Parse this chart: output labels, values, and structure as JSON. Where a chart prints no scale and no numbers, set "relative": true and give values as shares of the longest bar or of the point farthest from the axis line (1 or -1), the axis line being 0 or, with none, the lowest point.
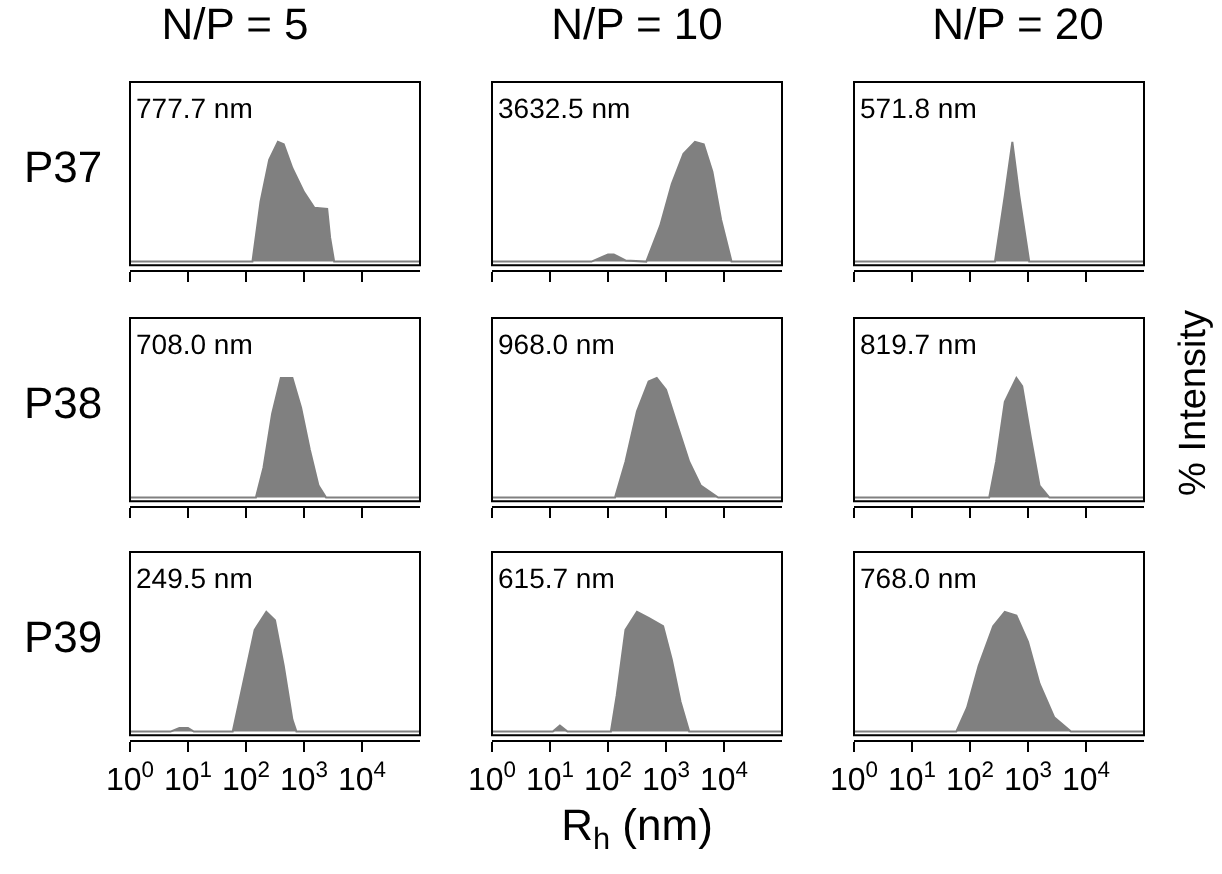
{
  "chart_data": [
    {
      "type": "area",
      "title": "N/P = 5",
      "ylabel": "P37",
      "annotations": [
        "777.7 nm"
      ],
      "relative": true,
      "tick_labels": false,
      "xlim": [
        1,
        100000
      ],
      "xticks": [
        {
          "value": 1,
          "label": null
        },
        {
          "value": 10,
          "label": null
        },
        {
          "value": 100,
          "label": null
        },
        {
          "value": 1000,
          "label": null
        },
        {
          "value": 10000,
          "label": null
        }
      ],
      "log": "x",
      "grid": false,
      "series": [
        {
          "color": "#808080",
          "x": [
            1,
            129,
            178,
            251,
            355,
            447,
            631,
            1000,
            1510,
            2510,
            2820,
            3310,
            100000
          ],
          "values": [
            0,
            0,
            0.5,
            0.85,
            1,
            0.98,
            0.78,
            0.58,
            0.45,
            0.44,
            0.2,
            0,
            0
          ]
        }
      ]
    },
    {
      "type": "area",
      "title": "N/P = 10",
      "annotations": [
        "3632.5 nm"
      ],
      "relative": true,
      "tick_labels": false,
      "xlim": [
        1,
        100000
      ],
      "xticks": [
        {
          "value": 1,
          "label": null
        },
        {
          "value": 10,
          "label": null
        },
        {
          "value": 100,
          "label": null
        },
        {
          "value": 1000,
          "label": null
        },
        {
          "value": 10000,
          "label": null
        }
      ],
      "log": "x",
      "grid": false,
      "series": [
        {
          "color": "#808080",
          "x": [
            1,
            52,
            100,
            126,
            200,
            457,
            794,
            1260,
            2000,
            3160,
            4470,
            6310,
            8910,
            13500,
            100000
          ],
          "values": [
            0,
            0,
            0.06,
            0.06,
            0.01,
            0,
            0.3,
            0.65,
            0.9,
            1,
            0.98,
            0.75,
            0.35,
            0,
            0
          ]
        }
      ]
    },
    {
      "type": "area",
      "title": "N/P = 20",
      "annotations": [
        "571.8 nm"
      ],
      "relative": true,
      "tick_labels": false,
      "xlim": [
        1,
        100000
      ],
      "xticks": [
        {
          "value": 1,
          "label": null
        },
        {
          "value": 10,
          "label": null
        },
        {
          "value": 100,
          "label": null
        },
        {
          "value": 1000,
          "label": null
        },
        {
          "value": 10000,
          "label": null
        }
      ],
      "log": "x",
      "grid": false,
      "series": [
        {
          "color": "#808080",
          "x": [
            1,
            269,
            398,
            537,
            708,
            1050,
            100000
          ],
          "values": [
            0,
            0,
            0.55,
            1,
            0.55,
            0,
            0
          ]
        }
      ]
    },
    {
      "type": "area",
      "ylabel": "P38",
      "annotations": [
        "708.0 nm"
      ],
      "relative": true,
      "tick_labels": false,
      "xlim": [
        1,
        100000
      ],
      "xticks": [
        {
          "value": 1,
          "label": null
        },
        {
          "value": 10,
          "label": null
        },
        {
          "value": 100,
          "label": null
        },
        {
          "value": 1000,
          "label": null
        },
        {
          "value": 10000,
          "label": null
        }
      ],
      "log": "x",
      "grid": false,
      "series": [
        {
          "color": "#808080",
          "x": [
            1,
            148,
            200,
            282,
            398,
            631,
            891,
            1260,
            1780,
            2400,
            100000
          ],
          "values": [
            0,
            0,
            0.25,
            0.7,
            1,
            1,
            0.75,
            0.4,
            0.1,
            0,
            0
          ]
        }
      ]
    },
    {
      "type": "area",
      "annotations": [
        "968.0 nm"
      ],
      "relative": true,
      "tick_labels": false,
      "xlim": [
        1,
        100000
      ],
      "xticks": [
        {
          "value": 1,
          "label": null
        },
        {
          "value": 10,
          "label": null
        },
        {
          "value": 100,
          "label": null
        },
        {
          "value": 1000,
          "label": null
        },
        {
          "value": 10000,
          "label": null
        }
      ],
      "log": "x",
      "grid": false,
      "series": [
        {
          "color": "#808080",
          "x": [
            1,
            132,
            200,
            316,
            501,
            692,
            1000,
            1580,
            2510,
            3980,
            7940,
            100000
          ],
          "values": [
            0,
            0,
            0.3,
            0.72,
            0.97,
            1,
            0.9,
            0.6,
            0.3,
            0.1,
            0,
            0
          ]
        }
      ]
    },
    {
      "type": "area",
      "y2label": "% Intensity",
      "annotations": [
        "819.7 nm"
      ],
      "relative": true,
      "tick_labels": false,
      "xlim": [
        1,
        100000
      ],
      "xticks": [
        {
          "value": 1,
          "label": null
        },
        {
          "value": 10,
          "label": null
        },
        {
          "value": 100,
          "label": null
        },
        {
          "value": 1000,
          "label": null
        },
        {
          "value": 10000,
          "label": null
        }
      ],
      "log": "x",
      "grid": false,
      "series": [
        {
          "color": "#808080",
          "x": [
            1,
            214,
            282,
            398,
            631,
            794,
            1120,
            1580,
            2340,
            100000
          ],
          "values": [
            0,
            0,
            0.3,
            0.8,
            1,
            0.93,
            0.5,
            0.1,
            0,
            0
          ]
        }
      ]
    },
    {
      "type": "area",
      "ylabel": "P39",
      "annotations": [
        "249.5 nm"
      ],
      "relative": true,
      "tick_labels": "x",
      "xlim": [
        1,
        100000
      ],
      "xticks": [
        {
          "value": 1,
          "label": "10$^{0}$"
        },
        {
          "value": 10,
          "label": "10$^{1}$"
        },
        {
          "value": 100,
          "label": "10$^{2}$"
        },
        {
          "value": 1000,
          "label": "10$^{3}$"
        },
        {
          "value": 10000,
          "label": "10$^{4}$"
        }
      ],
      "log": "x",
      "grid": false,
      "series": [
        {
          "color": "#808080",
          "x": [
            1,
            5,
            7.1,
            10,
            12.6,
            59,
            89,
            141,
            224,
            316,
            447,
            631,
            741,
            100000
          ],
          "values": [
            0,
            0,
            0.03,
            0.03,
            0,
            0,
            0.4,
            0.85,
            1,
            0.93,
            0.55,
            0.1,
            0,
            0
          ]
        }
      ]
    },
    {
      "type": "area",
      "xlabel": "R$_{h}$ (nm)",
      "annotations": [
        "615.7 nm"
      ],
      "relative": true,
      "tick_labels": "x",
      "xlim": [
        1,
        100000
      ],
      "xticks": [
        {
          "value": 1,
          "label": "10$^{0}$"
        },
        {
          "value": 10,
          "label": "10$^{1}$"
        },
        {
          "value": 100,
          "label": "10$^{2}$"
        },
        {
          "value": 1000,
          "label": "10$^{3}$"
        },
        {
          "value": 10000,
          "label": "10$^{4}$"
        }
      ],
      "log": "x",
      "grid": false,
      "series": [
        {
          "color": "#808080",
          "x": [
            1,
            11.2,
            14.8,
            20,
            112,
            141,
            200,
            316,
            501,
            891,
            1260,
            1780,
            2510,
            100000
          ],
          "values": [
            0,
            0,
            0.05,
            0,
            0,
            0.3,
            0.85,
            1,
            0.95,
            0.88,
            0.6,
            0.25,
            0,
            0
          ]
        }
      ]
    },
    {
      "type": "area",
      "annotations": [
        "768.0 nm"
      ],
      "relative": true,
      "tick_labels": "x",
      "xlim": [
        1,
        100000
      ],
      "xticks": [
        {
          "value": 1,
          "label": "10$^{0}$"
        },
        {
          "value": 10,
          "label": "10$^{1}$"
        },
        {
          "value": 100,
          "label": "10$^{2}$"
        },
        {
          "value": 1000,
          "label": "10$^{3}$"
        },
        {
          "value": 10000,
          "label": "10$^{4}$"
        }
      ],
      "log": "x",
      "grid": false,
      "series": [
        {
          "color": "#808080",
          "x": [
            1,
            58,
            89,
            141,
            251,
            398,
            631,
            1000,
            1580,
            2820,
            5500,
            100000
          ],
          "values": [
            0,
            0,
            0.2,
            0.55,
            0.88,
            1,
            0.97,
            0.75,
            0.4,
            0.12,
            0,
            0
          ]
        }
      ]
    }
  ]
}
